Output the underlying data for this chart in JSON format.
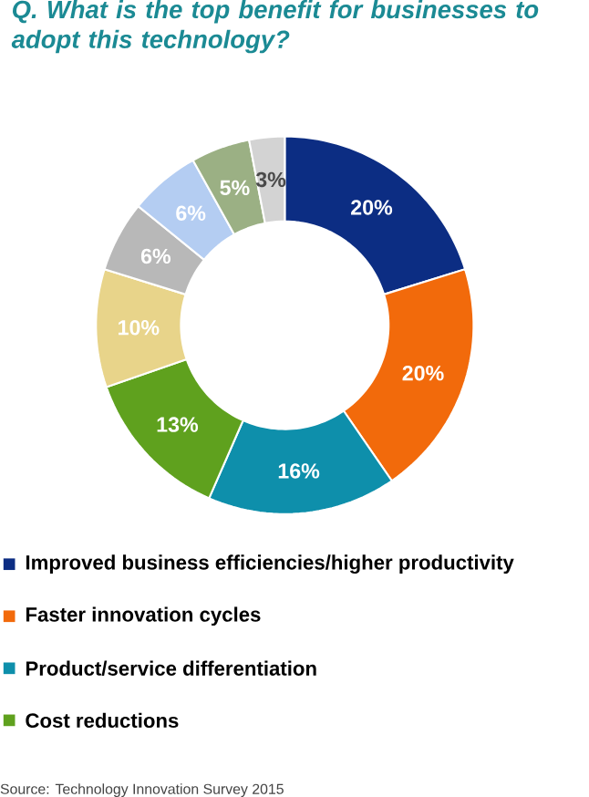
{
  "chart_data": {
    "type": "donut",
    "title": "Q. What is the top benefit for businesses to adopt this technology?",
    "categories": [
      "Improved business efficiencies/higher productivity",
      "Faster innovation cycles",
      "Product/service differentiation",
      "Cost reductions",
      null,
      null,
      null,
      null,
      null
    ],
    "values": [
      20,
      20,
      16,
      13,
      10,
      6,
      6,
      5,
      3
    ],
    "value_labels": [
      "20%",
      "20%",
      "16%",
      "13%",
      "10%",
      "6%",
      "6%",
      "5%",
      "3%"
    ],
    "colors": [
      "#0c2d83",
      "#f26a0b",
      "#0e8fab",
      "#5fa11e",
      "#e8d48a",
      "#b8b8b8",
      "#b4cdf2",
      "#9bb084",
      "#d3d3d3"
    ],
    "legend": "bottom",
    "annotations": [
      "Source: Technology Innovation Survey 2015"
    ]
  }
}
